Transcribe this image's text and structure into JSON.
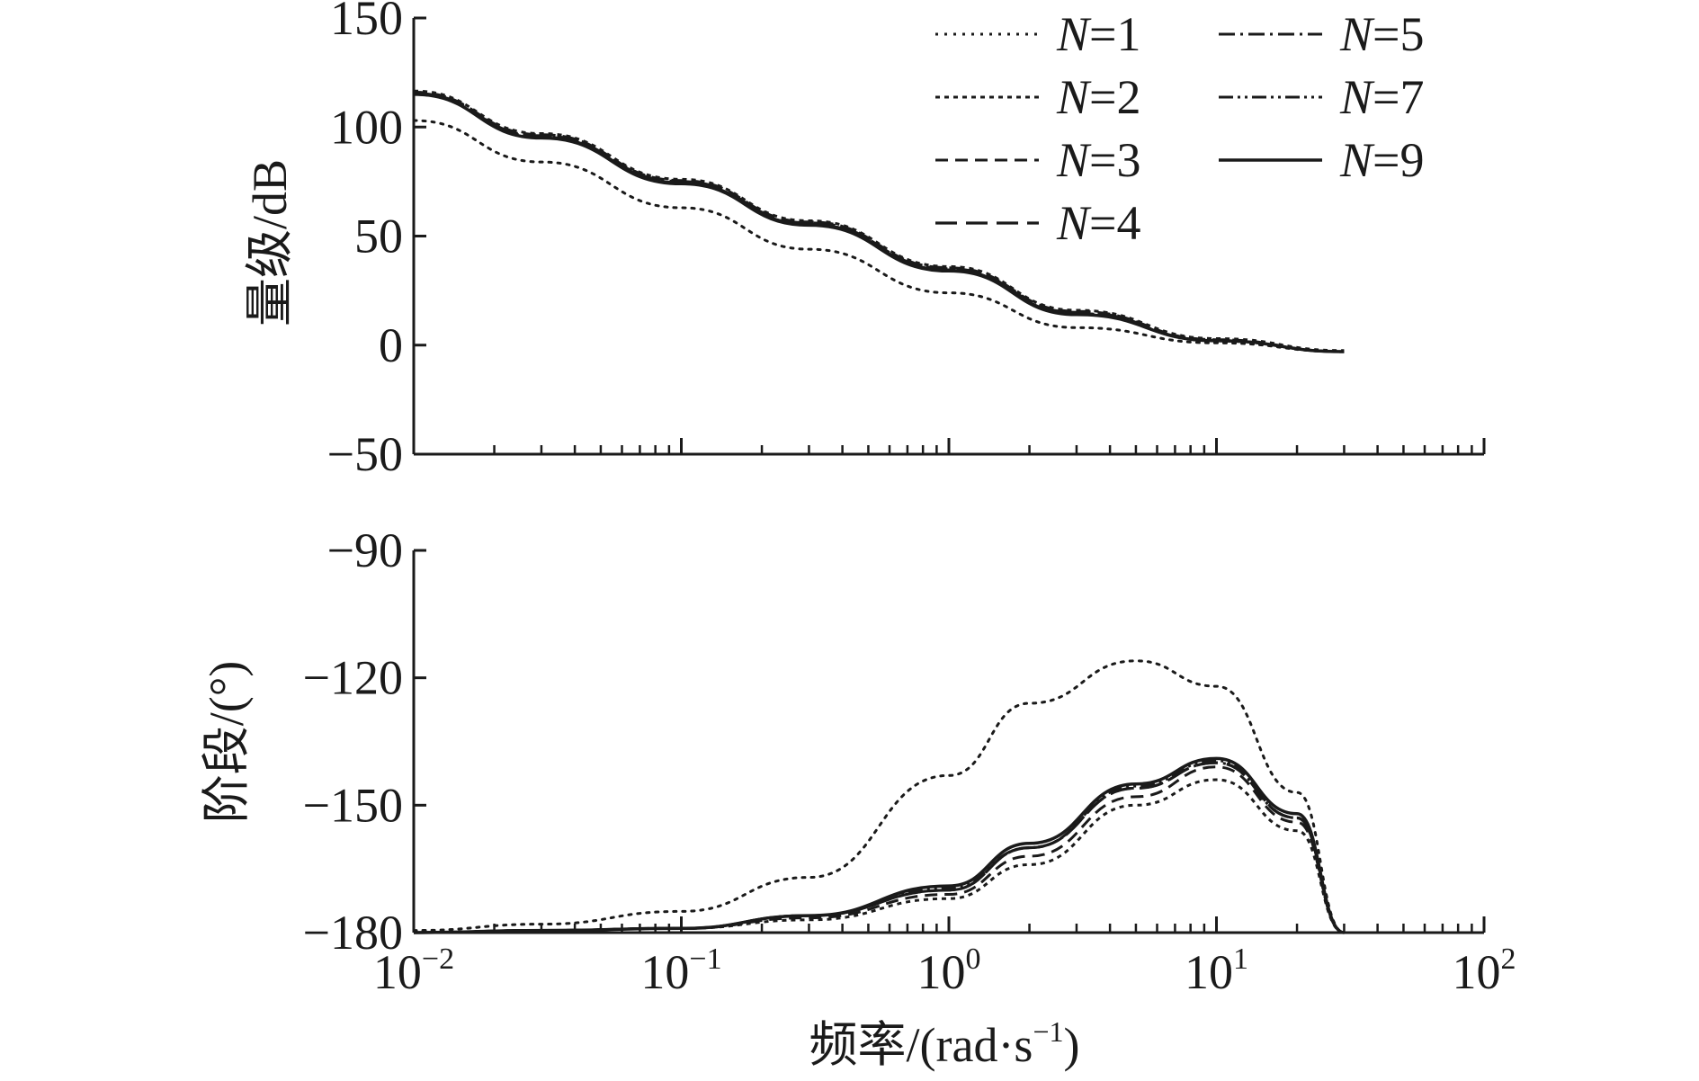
{
  "chart_data": [
    {
      "type": "line",
      "panel": "magnitude",
      "ylabel": "量级/dB",
      "xscale": "log",
      "xlim": [
        0.01,
        100
      ],
      "ylim": [
        -50,
        150
      ],
      "yticks": [
        "150",
        "100",
        "50",
        "0",
        "−50"
      ],
      "ytick_values": [
        150,
        100,
        50,
        0,
        -50
      ],
      "legend": {
        "placement": "top-right",
        "entries": [
          {
            "label": "N=1",
            "prefix": "N",
            "suffix": "=1",
            "dash": "dotted"
          },
          {
            "label": "N=5",
            "prefix": "N",
            "suffix": "=5",
            "dash": "dashdot"
          },
          {
            "label": "N=2",
            "prefix": "N",
            "suffix": "=2",
            "dash": "shortdot"
          },
          {
            "label": "N=7",
            "prefix": "N",
            "suffix": "=7",
            "dash": "dashdotdot"
          },
          {
            "label": "N=3",
            "prefix": "N",
            "suffix": "=3",
            "dash": "dashed"
          },
          {
            "label": "N=9",
            "prefix": "N",
            "suffix": "=9",
            "dash": "solid"
          },
          {
            "label": "N=4",
            "prefix": "N",
            "suffix": "=4",
            "dash": "longdash"
          }
        ]
      },
      "series": [
        {
          "name": "N=1",
          "x": [
            0.01,
            0.03,
            0.1,
            0.3,
            1,
            3,
            10,
            30
          ],
          "values": [
            103,
            84,
            63,
            44,
            24,
            8,
            1,
            -3
          ]
        },
        {
          "name": "N=2",
          "x": [
            0.01,
            0.03,
            0.1,
            0.3,
            1,
            3,
            10,
            30
          ],
          "values": [
            116.5,
            97,
            76,
            57,
            36,
            16,
            3,
            -2.5
          ]
        },
        {
          "name": "N=3",
          "x": [
            0.01,
            0.03,
            0.1,
            0.3,
            1,
            3,
            10,
            30
          ],
          "values": [
            116,
            96.5,
            75.5,
            56.5,
            35.5,
            15.5,
            2.5,
            -3
          ]
        },
        {
          "name": "N=4",
          "x": [
            0.01,
            0.03,
            0.1,
            0.3,
            1,
            3,
            10,
            30
          ],
          "values": [
            115.5,
            96,
            75,
            56,
            35,
            15,
            2,
            -3
          ]
        },
        {
          "name": "N=5",
          "x": [
            0.01,
            0.03,
            0.1,
            0.3,
            1,
            3,
            10,
            30
          ],
          "values": [
            115,
            95.5,
            74.5,
            55.5,
            34.5,
            14.5,
            2,
            -3
          ]
        },
        {
          "name": "N=7",
          "x": [
            0.01,
            0.03,
            0.1,
            0.3,
            1,
            3,
            10,
            30
          ],
          "values": [
            115,
            95.5,
            74.5,
            55.5,
            34.5,
            14.5,
            2,
            -3
          ]
        },
        {
          "name": "N=9",
          "x": [
            0.01,
            0.03,
            0.1,
            0.3,
            1,
            3,
            10,
            30
          ],
          "values": [
            115,
            95,
            74,
            55,
            34,
            14,
            2,
            -3
          ]
        }
      ]
    },
    {
      "type": "line",
      "panel": "phase",
      "ylabel": "阶段/(°)",
      "xlabel_main": "频率/(rad·s",
      "xlabel_sup": "−1",
      "xlabel_close": ")",
      "xscale": "log",
      "xlim": [
        0.01,
        100
      ],
      "ylim": [
        -180,
        -90
      ],
      "yticks": [
        "−90",
        "−120",
        "−150",
        "−180"
      ],
      "ytick_values": [
        -90,
        -120,
        -150,
        -180
      ],
      "xticks": [
        {
          "base": "10",
          "exp": "−2",
          "value": 0.01
        },
        {
          "base": "10",
          "exp": "−1",
          "value": 0.1
        },
        {
          "base": "10",
          "exp": "0",
          "value": 1
        },
        {
          "base": "10",
          "exp": "1",
          "value": 10
        },
        {
          "base": "10",
          "exp": "2",
          "value": 100
        }
      ],
      "series": [
        {
          "name": "N=1",
          "x": [
            0.01,
            0.03,
            0.1,
            0.3,
            1,
            2,
            5,
            10,
            20,
            30
          ],
          "values": [
            -179.5,
            -178,
            -175,
            -167,
            -143,
            -126,
            -116,
            -122,
            -147,
            -180
          ]
        },
        {
          "name": "N=2",
          "x": [
            0.01,
            0.03,
            0.1,
            0.3,
            1,
            2,
            5,
            10,
            20,
            30
          ],
          "values": [
            -180,
            -179.5,
            -179,
            -177,
            -172,
            -164,
            -150,
            -144,
            -156,
            -180
          ]
        },
        {
          "name": "N=3",
          "x": [
            0.01,
            0.03,
            0.1,
            0.3,
            1,
            2,
            5,
            10,
            20,
            30
          ],
          "values": [
            -180,
            -179.5,
            -179,
            -176.5,
            -171,
            -162,
            -148,
            -141,
            -154,
            -180
          ]
        },
        {
          "name": "N=4",
          "x": [
            0.01,
            0.03,
            0.1,
            0.3,
            1,
            2,
            5,
            10,
            20,
            30
          ],
          "values": [
            -180,
            -179.5,
            -179,
            -176,
            -170,
            -160,
            -146,
            -140,
            -153,
            -180
          ]
        },
        {
          "name": "N=5",
          "x": [
            0.01,
            0.03,
            0.1,
            0.3,
            1,
            2,
            5,
            10,
            20,
            30
          ],
          "values": [
            -180,
            -179.5,
            -179,
            -176,
            -170,
            -160,
            -146,
            -140,
            -153,
            -180
          ]
        },
        {
          "name": "N=7",
          "x": [
            0.01,
            0.03,
            0.1,
            0.3,
            1,
            2,
            5,
            10,
            20,
            30
          ],
          "values": [
            -180,
            -179.5,
            -179,
            -176,
            -169.5,
            -160,
            -145.5,
            -139.5,
            -153,
            -180
          ]
        },
        {
          "name": "N=9",
          "x": [
            0.01,
            0.03,
            0.1,
            0.3,
            1,
            2,
            5,
            10,
            20,
            30
          ],
          "values": [
            -180,
            -179.5,
            -179,
            -176,
            -169,
            -159,
            -145,
            -139,
            -152,
            -180
          ]
        }
      ]
    }
  ]
}
